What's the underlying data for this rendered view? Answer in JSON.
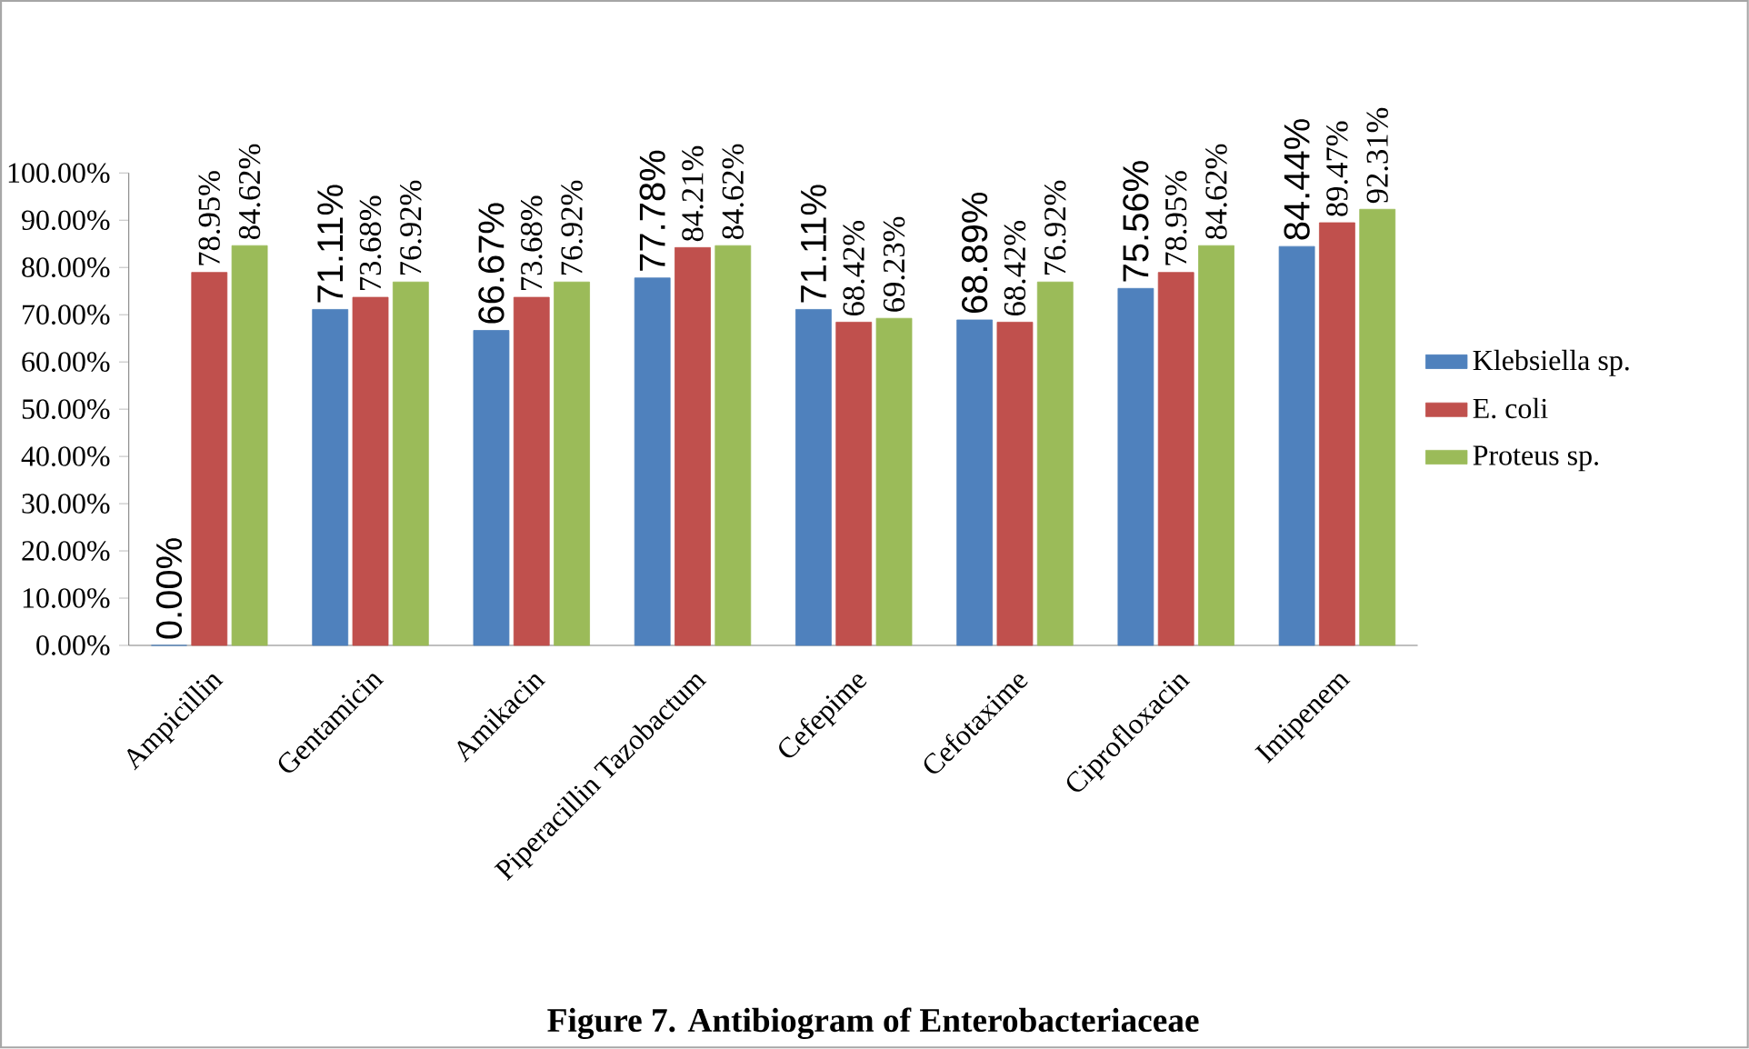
{
  "chart_data": {
    "type": "bar",
    "title": "Figure 7. Antibiogram of Enterobacteriaceae",
    "categories": [
      "Ampicillin",
      "Gentamicin",
      "Amikacin",
      "Piperacillin Tazobactum",
      "Cefepime",
      "Cefotaxime",
      "Ciprofloxacin",
      "Imipenem"
    ],
    "series": [
      {
        "name": "Klebsiella sp.",
        "color": "#4f81bd",
        "values": [
          0,
          71.11,
          66.67,
          77.78,
          71.11,
          68.89,
          75.56,
          84.44
        ],
        "value_labels": [
          "0.00%",
          "71.11%",
          "66.67%",
          "77.78%",
          "71.11%",
          "68.89%",
          "75.56%",
          "84.44%"
        ]
      },
      {
        "name": "E. coli",
        "color": "#c0504d",
        "values": [
          78.95,
          73.68,
          73.68,
          84.21,
          68.42,
          68.42,
          78.95,
          89.47
        ],
        "value_labels": [
          "78.95%",
          "73.68%",
          "73.68%",
          "84.21%",
          "68.42%",
          "68.42%",
          "78.95%",
          "89.47%"
        ]
      },
      {
        "name": "Proteus sp.",
        "color": "#9bbb59",
        "values": [
          84.62,
          76.92,
          76.92,
          84.62,
          69.23,
          76.92,
          84.62,
          92.31
        ],
        "value_labels": [
          "84.62%",
          "76.92%",
          "76.92%",
          "84.62%",
          "69.23%",
          "76.92%",
          "84.62%",
          "92.31%"
        ]
      }
    ],
    "ylim": [
      0,
      100
    ],
    "yticks": [
      {
        "value": 0,
        "label": "0.00%"
      },
      {
        "value": 10,
        "label": "10.00%"
      },
      {
        "value": 20,
        "label": "20.00%"
      },
      {
        "value": 30,
        "label": "30.00%"
      },
      {
        "value": 40,
        "label": "40.00%"
      },
      {
        "value": 50,
        "label": "50.00%"
      },
      {
        "value": 60,
        "label": "60.00%"
      },
      {
        "value": 70,
        "label": "70.00%"
      },
      {
        "value": 80,
        "label": "80.00%"
      },
      {
        "value": 90,
        "label": "90.00%"
      },
      {
        "value": 100,
        "label": "100.00%"
      }
    ],
    "legend": "right"
  }
}
